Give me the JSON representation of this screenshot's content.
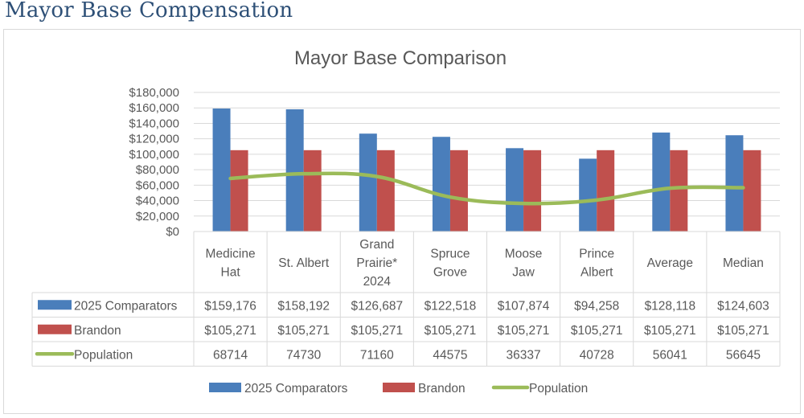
{
  "page": {
    "title": "Mayor Base Compensation"
  },
  "chart_data": {
    "type": "bar",
    "title": "Mayor Base Comparison",
    "xlabel": "",
    "ylabel": "",
    "ylim": [
      0,
      180000
    ],
    "yticks": [
      0,
      20000,
      40000,
      60000,
      80000,
      100000,
      120000,
      140000,
      160000,
      180000
    ],
    "ytick_labels": [
      "$0",
      "$20,000",
      "$40,000",
      "$60,000",
      "$80,000",
      "$100,000",
      "$120,000",
      "$140,000",
      "$160,000",
      "$180,000"
    ],
    "grid": true,
    "legend_position": "bottom",
    "categories": [
      [
        "Medicine",
        "Hat"
      ],
      [
        "St. Albert"
      ],
      [
        "Grand",
        "Prairie*",
        "2024"
      ],
      [
        "Spruce",
        "Grove"
      ],
      [
        "Moose",
        "Jaw"
      ],
      [
        "Prince",
        "Albert"
      ],
      [
        "Average"
      ],
      [
        "Median"
      ]
    ],
    "series": [
      {
        "name": "2025 Comparators",
        "kind": "bar",
        "color": "#4a7ebb",
        "values": [
          159176,
          158192,
          126687,
          122518,
          107874,
          94258,
          128118,
          124603
        ],
        "labels": [
          "$159,176",
          "$158,192",
          "$126,687",
          "$122,518",
          "$107,874",
          "$94,258",
          "$128,118",
          "$124,603"
        ]
      },
      {
        "name": "Brandon",
        "kind": "bar",
        "color": "#c0504d",
        "values": [
          105271,
          105271,
          105271,
          105271,
          105271,
          105271,
          105271,
          105271
        ],
        "labels": [
          "$105,271",
          "$105,271",
          "$105,271",
          "$105,271",
          "$105,271",
          "$105,271",
          "$105,271",
          "$105,271"
        ]
      },
      {
        "name": "Population",
        "kind": "line",
        "color": "#9bbb59",
        "values": [
          68714,
          74730,
          71160,
          44575,
          36337,
          40728,
          56041,
          56645
        ],
        "labels": [
          "68714",
          "74730",
          "71160",
          "44575",
          "36337",
          "40728",
          "56041",
          "56645"
        ]
      }
    ],
    "data_table": true
  }
}
